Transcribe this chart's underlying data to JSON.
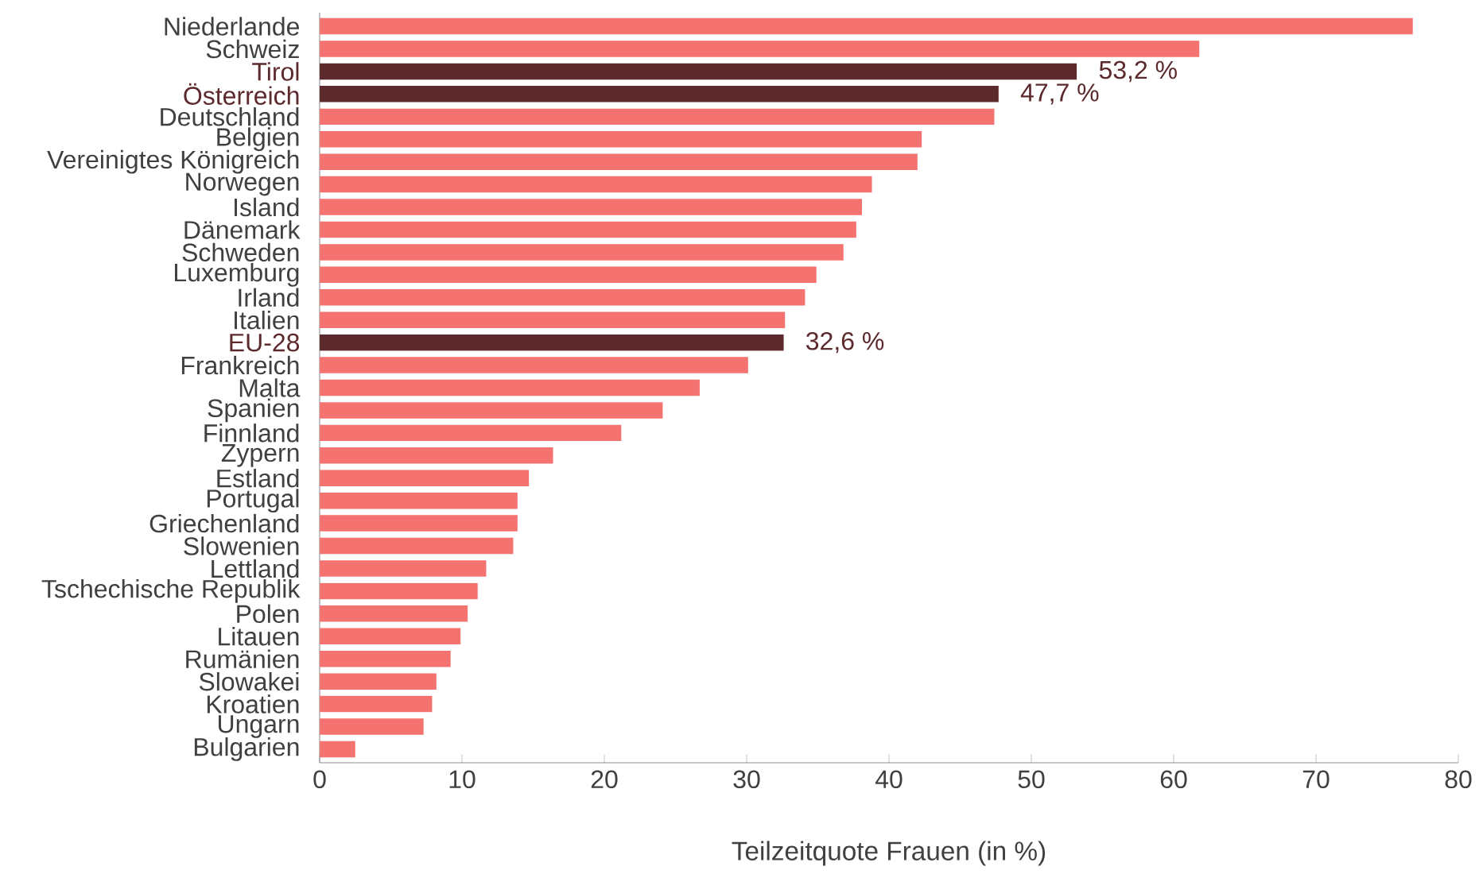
{
  "chart_data": {
    "type": "bar",
    "orientation": "horizontal",
    "xlabel": "Teilzeitquote Frauen (in %)",
    "categories": [
      "Niederlande",
      "Schweiz",
      "Tirol",
      "Österreich",
      "Deutschland",
      "Belgien",
      "Vereinigtes Königreich",
      "Norwegen",
      "Island",
      "Dänemark",
      "Schweden",
      "Luxemburg",
      "Irland",
      "Italien",
      "EU-28",
      "Frankreich",
      "Malta",
      "Spanien",
      "Finnland",
      "Zypern",
      "Estland",
      "Portugal",
      "Griechenland",
      "Slowenien",
      "Lettland",
      "Tschechische Republik",
      "Polen",
      "Litauen",
      "Rumänien",
      "Slowakei",
      "Kroatien",
      "Ungarn",
      "Bulgarien"
    ],
    "values": [
      76.8,
      61.8,
      53.2,
      47.7,
      47.4,
      42.3,
      42.0,
      38.8,
      38.1,
      37.7,
      36.8,
      34.9,
      34.1,
      32.7,
      32.6,
      30.1,
      26.7,
      24.1,
      21.2,
      16.4,
      14.7,
      13.9,
      13.9,
      13.6,
      11.7,
      11.1,
      10.4,
      9.9,
      9.2,
      8.2,
      7.9,
      7.3,
      2.5
    ],
    "colors": [
      "#f4726f",
      "#f4726f",
      "#5c2a2c",
      "#5c2a2c",
      "#f4726f",
      "#f4726f",
      "#f4726f",
      "#f4726f",
      "#f4726f",
      "#f4726f",
      "#f4726f",
      "#f4726f",
      "#f4726f",
      "#f4726f",
      "#5c2a2c",
      "#f4726f",
      "#f4726f",
      "#f4726f",
      "#f4726f",
      "#f4726f",
      "#f4726f",
      "#f4726f",
      "#f4726f",
      "#f4726f",
      "#f4726f",
      "#f4726f",
      "#f4726f",
      "#f4726f",
      "#f4726f",
      "#f4726f",
      "#f4726f",
      "#f4726f",
      "#f4726f"
    ],
    "value_labels": [
      null,
      null,
      "53,2 %",
      "47,7 %",
      null,
      null,
      null,
      null,
      null,
      null,
      null,
      null,
      null,
      null,
      "32,6 %",
      null,
      null,
      null,
      null,
      null,
      null,
      null,
      null,
      null,
      null,
      null,
      null,
      null,
      null,
      null,
      null,
      null,
      null
    ],
    "xlim": [
      0,
      80
    ],
    "xticks": [
      0,
      10,
      20,
      30,
      40,
      50,
      60,
      70,
      80
    ]
  }
}
